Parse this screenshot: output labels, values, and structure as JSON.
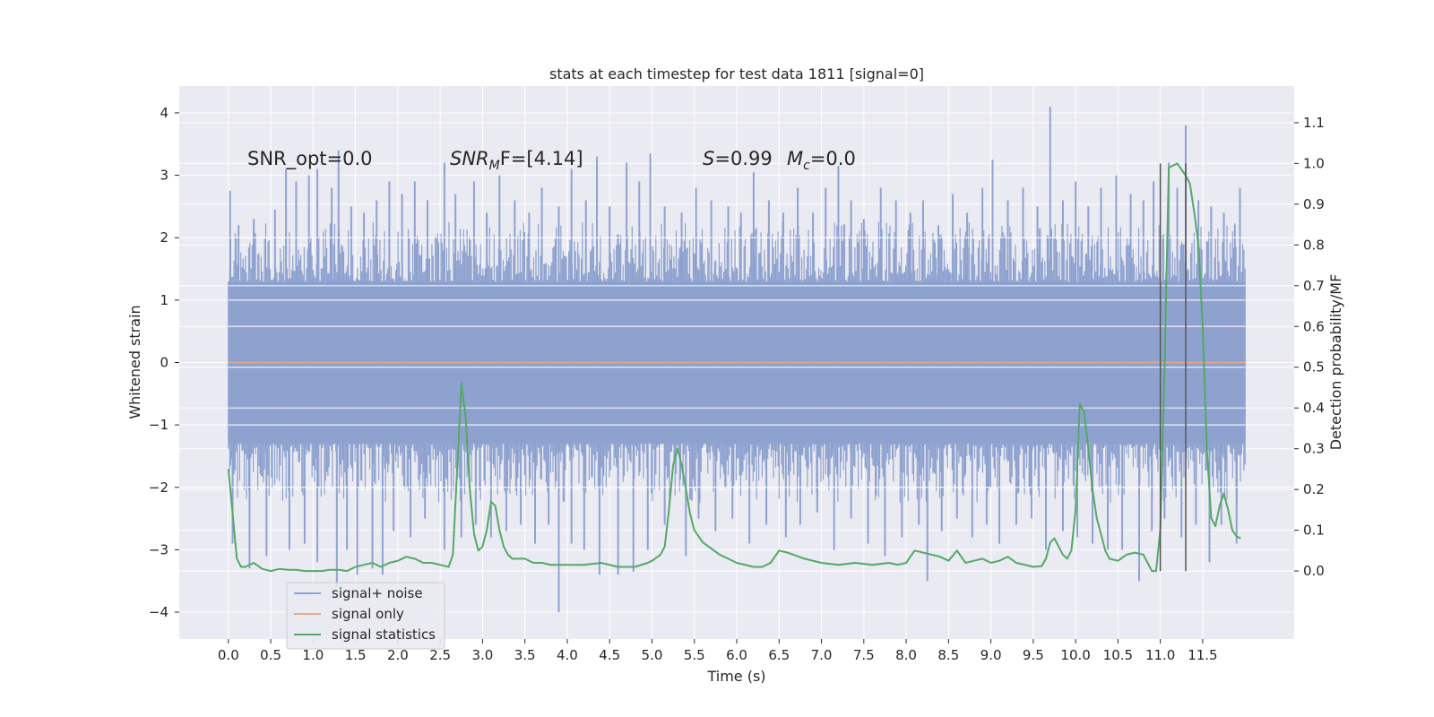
{
  "chart_data": {
    "type": "line",
    "title": "stats at each timestep for test data 1811 [signal=0]",
    "xlabel": "Time (s)",
    "ylabel": "Whitened strain",
    "y2label": "Detection probability/MF",
    "xlim": [
      -0.58,
      12.58
    ],
    "ylim": [
      -4.43,
      4.43
    ],
    "y2lim": [
      -0.167,
      1.19
    ],
    "x_ticks": [
      0.0,
      0.5,
      1.0,
      1.5,
      2.0,
      2.5,
      3.0,
      3.5,
      4.0,
      4.5,
      5.0,
      5.5,
      6.0,
      6.5,
      7.0,
      7.5,
      8.0,
      8.5,
      9.0,
      9.5,
      10.0,
      10.5,
      11.0,
      11.5
    ],
    "x_tick_labels": [
      "0.0",
      "0.5",
      "1.0",
      "1.5",
      "2.0",
      "2.5",
      "3.0",
      "3.5",
      "4.0",
      "4.5",
      "5.0",
      "5.5",
      "6.0",
      "6.5",
      "7.0",
      "7.5",
      "8.0",
      "8.5",
      "9.0",
      "9.5",
      "10.0",
      "10.5",
      "11.0",
      "11.5"
    ],
    "y_ticks": [
      -4,
      -3,
      -2,
      -1,
      0,
      1,
      2,
      3,
      4
    ],
    "y_tick_labels": [
      "−4",
      "−3",
      "−2",
      "−1",
      "0",
      "1",
      "2",
      "3",
      "4"
    ],
    "y2_ticks": [
      0.0,
      0.1,
      0.2,
      0.3,
      0.4,
      0.5,
      0.6,
      0.7,
      0.8,
      0.9,
      1.0,
      1.1
    ],
    "y2_tick_labels": [
      "0.0",
      "0.1",
      "0.2",
      "0.3",
      "0.4",
      "0.5",
      "0.6",
      "0.7",
      "0.8",
      "0.9",
      "1.0",
      "1.1"
    ],
    "grid": true,
    "legend": {
      "placement": "lower-left",
      "entries": [
        {
          "label": "signal+ noise",
          "color": "#8fa2cf"
        },
        {
          "label": "signal only",
          "color": "#e6a98a"
        },
        {
          "label": "signal statistics",
          "color": "#55a868"
        }
      ]
    },
    "annotations": {
      "snr_opt": "SNR_opt=0.0",
      "snr_mf_main": "SNR",
      "snr_mf_sub": "M",
      "snr_mf_rest": "F=[4.14]",
      "s_main": "S",
      "s_rest": "=0.99",
      "mc_main": "M",
      "mc_sub": "c",
      "mc_rest": "=0.0"
    },
    "noise_series": {
      "name": "signal+ noise",
      "x_start": 0.0,
      "x_end": 12.0,
      "core_band": [
        -1.3,
        1.3
      ],
      "peaks_upper": [
        [
          0.02,
          2.75
        ],
        [
          0.12,
          2.2
        ],
        [
          0.3,
          2.3
        ],
        [
          0.55,
          2.45
        ],
        [
          0.68,
          3.1
        ],
        [
          0.8,
          2.9
        ],
        [
          0.95,
          3.0
        ],
        [
          1.05,
          3.1
        ],
        [
          1.22,
          2.8
        ],
        [
          1.3,
          3.4
        ],
        [
          1.45,
          2.5
        ],
        [
          1.6,
          2.4
        ],
        [
          1.75,
          2.6
        ],
        [
          1.9,
          2.9
        ],
        [
          2.05,
          2.7
        ],
        [
          2.2,
          2.9
        ],
        [
          2.35,
          2.6
        ],
        [
          2.55,
          3.2
        ],
        [
          2.68,
          2.7
        ],
        [
          2.9,
          2.9
        ],
        [
          3.05,
          2.4
        ],
        [
          3.2,
          3.0
        ],
        [
          3.38,
          2.6
        ],
        [
          3.55,
          2.4
        ],
        [
          3.7,
          2.8
        ],
        [
          3.9,
          2.5
        ],
        [
          4.05,
          3.1
        ],
        [
          4.22,
          2.6
        ],
        [
          4.35,
          3.3
        ],
        [
          4.5,
          2.5
        ],
        [
          4.7,
          3.2
        ],
        [
          4.85,
          2.9
        ],
        [
          4.98,
          3.35
        ],
        [
          5.15,
          2.5
        ],
        [
          5.35,
          2.4
        ],
        [
          5.52,
          2.8
        ],
        [
          5.7,
          2.6
        ],
        [
          5.9,
          2.5
        ],
        [
          6.05,
          2.4
        ],
        [
          6.2,
          3.05
        ],
        [
          6.38,
          2.6
        ],
        [
          6.55,
          2.4
        ],
        [
          6.72,
          2.8
        ],
        [
          6.9,
          2.4
        ],
        [
          7.05,
          2.8
        ],
        [
          7.2,
          3.15
        ],
        [
          7.35,
          2.6
        ],
        [
          7.5,
          2.3
        ],
        [
          7.7,
          2.8
        ],
        [
          7.88,
          2.6
        ],
        [
          8.05,
          2.4
        ],
        [
          8.2,
          2.6
        ],
        [
          8.38,
          2.2
        ],
        [
          8.55,
          2.7
        ],
        [
          8.72,
          2.4
        ],
        [
          8.9,
          2.8
        ],
        [
          9.02,
          3.25
        ],
        [
          9.2,
          2.6
        ],
        [
          9.38,
          2.8
        ],
        [
          9.55,
          2.5
        ],
        [
          9.7,
          4.1
        ],
        [
          9.85,
          2.6
        ],
        [
          10.0,
          2.9
        ],
        [
          10.15,
          2.5
        ],
        [
          10.3,
          2.8
        ],
        [
          10.48,
          3.0
        ],
        [
          10.65,
          2.7
        ],
        [
          10.8,
          2.6
        ],
        [
          10.92,
          2.9
        ],
        [
          11.1,
          3.2
        ],
        [
          11.2,
          2.8
        ],
        [
          11.3,
          3.8
        ],
        [
          11.45,
          2.6
        ],
        [
          11.6,
          2.5
        ],
        [
          11.75,
          2.4
        ],
        [
          11.88,
          2.2
        ],
        [
          11.94,
          2.8
        ]
      ],
      "peaks_lower": [
        [
          0.05,
          -2.9
        ],
        [
          0.25,
          -3.3
        ],
        [
          0.45,
          -3.1
        ],
        [
          0.72,
          -3.0
        ],
        [
          0.9,
          -2.9
        ],
        [
          1.05,
          -3.2
        ],
        [
          1.28,
          -3.6
        ],
        [
          1.4,
          -3.0
        ],
        [
          1.52,
          -3.4
        ],
        [
          1.7,
          -3.3
        ],
        [
          1.82,
          -3.4
        ],
        [
          1.95,
          -2.7
        ],
        [
          2.15,
          -2.8
        ],
        [
          2.32,
          -2.5
        ],
        [
          2.55,
          -3.0
        ],
        [
          2.75,
          -2.8
        ],
        [
          2.92,
          -2.6
        ],
        [
          3.1,
          -2.8
        ],
        [
          3.28,
          -2.7
        ],
        [
          3.45,
          -2.6
        ],
        [
          3.62,
          -2.9
        ],
        [
          3.78,
          -2.6
        ],
        [
          3.9,
          -4.0
        ],
        [
          4.05,
          -2.9
        ],
        [
          4.2,
          -3.0
        ],
        [
          4.38,
          -3.4
        ],
        [
          4.6,
          -3.4
        ],
        [
          4.78,
          -3.35
        ],
        [
          4.95,
          -3.0
        ],
        [
          5.15,
          -2.6
        ],
        [
          5.4,
          -3.1
        ],
        [
          5.55,
          -2.5
        ],
        [
          5.75,
          -2.7
        ],
        [
          5.95,
          -2.5
        ],
        [
          6.15,
          -2.9
        ],
        [
          6.35,
          -2.6
        ],
        [
          6.58,
          -2.8
        ],
        [
          6.75,
          -2.6
        ],
        [
          6.95,
          -2.4
        ],
        [
          7.15,
          -3.0
        ],
        [
          7.35,
          -2.5
        ],
        [
          7.55,
          -2.9
        ],
        [
          7.75,
          -3.1
        ],
        [
          7.95,
          -2.8
        ],
        [
          8.15,
          -2.6
        ],
        [
          8.25,
          -3.5
        ],
        [
          8.42,
          -2.7
        ],
        [
          8.6,
          -2.5
        ],
        [
          8.78,
          -2.8
        ],
        [
          8.95,
          -2.6
        ],
        [
          9.1,
          -2.9
        ],
        [
          9.3,
          -2.6
        ],
        [
          9.48,
          -2.5
        ],
        [
          9.65,
          -3.0
        ],
        [
          9.85,
          -2.7
        ],
        [
          10.02,
          -2.8
        ],
        [
          10.2,
          -2.9
        ],
        [
          10.38,
          -3.0
        ],
        [
          10.55,
          -3.0
        ],
        [
          10.75,
          -3.5
        ],
        [
          10.9,
          -2.7
        ],
        [
          11.05,
          -2.5
        ],
        [
          11.25,
          -2.8
        ],
        [
          11.42,
          -2.6
        ],
        [
          11.58,
          -3.2
        ],
        [
          11.72,
          -2.6
        ],
        [
          11.9,
          -2.9
        ]
      ]
    },
    "signal_only": {
      "name": "signal only",
      "x": [
        0.0,
        12.0
      ],
      "y": [
        0.0,
        0.0
      ]
    },
    "statistics": {
      "name": "signal statistics",
      "x": [
        0.0,
        0.05,
        0.1,
        0.15,
        0.2,
        0.3,
        0.4,
        0.5,
        0.6,
        0.7,
        0.8,
        0.9,
        1.0,
        1.1,
        1.2,
        1.3,
        1.4,
        1.5,
        1.6,
        1.7,
        1.8,
        1.9,
        2.0,
        2.1,
        2.2,
        2.3,
        2.4,
        2.5,
        2.6,
        2.65,
        2.7,
        2.75,
        2.8,
        2.85,
        2.9,
        2.95,
        3.0,
        3.05,
        3.1,
        3.15,
        3.2,
        3.25,
        3.3,
        3.35,
        3.4,
        3.45,
        3.5,
        3.6,
        3.7,
        3.8,
        3.9,
        4.0,
        4.2,
        4.4,
        4.6,
        4.8,
        4.95,
        5.0,
        5.1,
        5.15,
        5.2,
        5.25,
        5.3,
        5.35,
        5.4,
        5.45,
        5.5,
        5.6,
        5.8,
        6.0,
        6.2,
        6.3,
        6.4,
        6.5,
        6.6,
        6.8,
        7.0,
        7.2,
        7.4,
        7.6,
        7.8,
        7.9,
        8.0,
        8.1,
        8.3,
        8.4,
        8.5,
        8.6,
        8.7,
        8.8,
        8.9,
        9.0,
        9.1,
        9.2,
        9.3,
        9.4,
        9.5,
        9.6,
        9.65,
        9.7,
        9.75,
        9.8,
        9.85,
        9.9,
        9.95,
        10.0,
        10.05,
        10.1,
        10.15,
        10.2,
        10.25,
        10.3,
        10.35,
        10.4,
        10.5,
        10.6,
        10.7,
        10.8,
        10.85,
        10.9,
        10.95,
        11.0,
        11.05,
        11.1,
        11.15,
        11.2,
        11.25,
        11.3,
        11.35,
        11.4,
        11.45,
        11.5,
        11.55,
        11.6,
        11.65,
        11.7,
        11.75,
        11.8,
        11.85,
        11.9,
        11.95
      ],
      "y": [
        0.25,
        0.14,
        0.03,
        0.01,
        0.01,
        0.02,
        0.005,
        0.0,
        0.005,
        0.003,
        0.003,
        0.0,
        0.0,
        0.0,
        0.003,
        0.003,
        0.0,
        0.01,
        0.015,
        0.02,
        0.01,
        0.02,
        0.025,
        0.035,
        0.03,
        0.02,
        0.02,
        0.015,
        0.01,
        0.04,
        0.25,
        0.46,
        0.38,
        0.2,
        0.09,
        0.05,
        0.06,
        0.1,
        0.17,
        0.16,
        0.1,
        0.06,
        0.04,
        0.03,
        0.03,
        0.03,
        0.03,
        0.02,
        0.02,
        0.015,
        0.015,
        0.015,
        0.015,
        0.02,
        0.01,
        0.01,
        0.02,
        0.025,
        0.04,
        0.06,
        0.15,
        0.26,
        0.3,
        0.26,
        0.2,
        0.14,
        0.1,
        0.07,
        0.04,
        0.02,
        0.01,
        0.01,
        0.02,
        0.05,
        0.045,
        0.03,
        0.02,
        0.015,
        0.02,
        0.015,
        0.02,
        0.015,
        0.02,
        0.05,
        0.04,
        0.035,
        0.025,
        0.05,
        0.02,
        0.025,
        0.03,
        0.02,
        0.025,
        0.035,
        0.02,
        0.015,
        0.01,
        0.012,
        0.03,
        0.07,
        0.08,
        0.06,
        0.04,
        0.03,
        0.05,
        0.15,
        0.41,
        0.39,
        0.3,
        0.2,
        0.13,
        0.09,
        0.05,
        0.03,
        0.025,
        0.04,
        0.045,
        0.04,
        0.02,
        0.0,
        0.0,
        0.1,
        0.5,
        0.99,
        0.995,
        1.0,
        0.985,
        0.97,
        0.95,
        0.88,
        0.8,
        0.6,
        0.3,
        0.13,
        0.11,
        0.16,
        0.19,
        0.15,
        0.1,
        0.085,
        0.08
      ],
      "color": "#55a868"
    },
    "markers": {
      "x": [
        11.0,
        11.3
      ],
      "y_range": [
        0.0,
        1.0
      ],
      "color": "#555555"
    }
  }
}
